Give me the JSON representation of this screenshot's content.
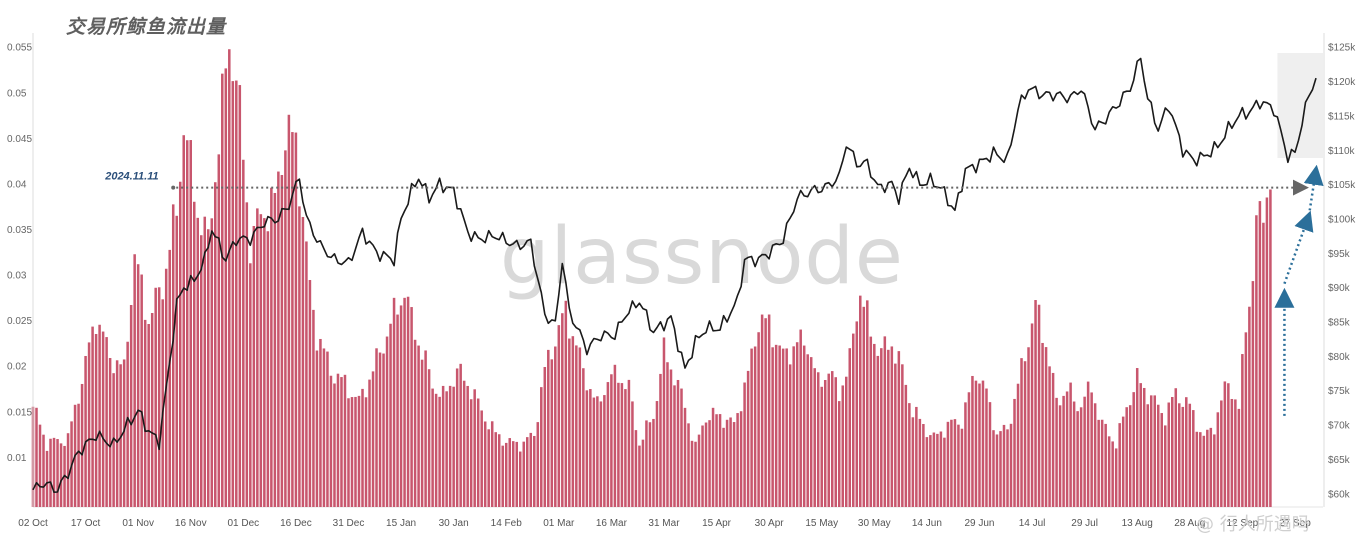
{
  "title": "交易所鲸鱼流出量",
  "watermark": "glassnode",
  "credit": "@ 行人所遇吗",
  "chart_data": {
    "type": "bar+line",
    "title": "交易所鲸鱼流出量",
    "left_axis": {
      "ticks": [
        "0.01",
        "0.015",
        "0.02",
        "0.025",
        "0.03",
        "0.035",
        "0.04",
        "0.045",
        "0.05",
        "0.055"
      ],
      "ylim": [
        0.0045,
        0.0565
      ]
    },
    "right_axis": {
      "ticks": [
        "$60k",
        "$65k",
        "$70k",
        "$75k",
        "$80k",
        "$85k",
        "$90k",
        "$95k",
        "$100k",
        "$105k",
        "$110k",
        "$115k",
        "$120k",
        "$125k"
      ],
      "ylim": [
        58000,
        127000
      ]
    },
    "x_axis": {
      "start": "2024-10-02",
      "end": "2025-09-20",
      "ticks": [
        "02 Oct",
        "17 Oct",
        "01 Nov",
        "16 Nov",
        "01 Dec",
        "16 Dec",
        "31 Dec",
        "15 Jan",
        "30 Jan",
        "14 Feb",
        "01 Mar",
        "16 Mar",
        "31 Mar",
        "15 Apr",
        "30 Apr",
        "15 May",
        "30 May",
        "14 Jun",
        "29 Jun",
        "14 Jul",
        "29 Jul",
        "13 Aug",
        "28 Aug",
        "12 Sep",
        "27 Sep"
      ]
    },
    "series": [
      {
        "kind": "bar",
        "axis": "left",
        "color": "#c8566d",
        "points": [
          [
            "2024-10-02",
            0.0155
          ],
          [
            "2024-10-06",
            0.0115
          ],
          [
            "2024-10-12",
            0.012
          ],
          [
            "2024-10-16",
            0.0185
          ],
          [
            "2024-10-20",
            0.0255
          ],
          [
            "2024-10-24",
            0.021
          ],
          [
            "2024-10-28",
            0.0195
          ],
          [
            "2024-10-31",
            0.032
          ],
          [
            "2024-11-04",
            0.025
          ],
          [
            "2024-11-08",
            0.029
          ],
          [
            "2024-11-12",
            0.037
          ],
          [
            "2024-11-14",
            0.0465
          ],
          [
            "2024-11-18",
            0.037
          ],
          [
            "2024-11-21",
            0.0335
          ],
          [
            "2024-11-24",
            0.045
          ],
          [
            "2024-11-27",
            0.0555
          ],
          [
            "2024-11-29",
            0.052
          ],
          [
            "2024-12-03",
            0.0335
          ],
          [
            "2024-12-06",
            0.0365
          ],
          [
            "2024-12-10",
            0.038
          ],
          [
            "2024-12-13",
            0.0455
          ],
          [
            "2024-12-16",
            0.0445
          ],
          [
            "2024-12-20",
            0.0285
          ],
          [
            "2024-12-22",
            0.0235
          ],
          [
            "2024-12-26",
            0.0195
          ],
          [
            "2024-12-30",
            0.018
          ],
          [
            "2025-01-03",
            0.016
          ],
          [
            "2025-01-07",
            0.0195
          ],
          [
            "2025-01-11",
            0.0235
          ],
          [
            "2025-01-14",
            0.0265
          ],
          [
            "2025-01-16",
            0.0283
          ],
          [
            "2025-01-18",
            0.025
          ],
          [
            "2025-01-21",
            0.0215
          ],
          [
            "2025-01-24",
            0.018
          ],
          [
            "2025-01-27",
            0.0165
          ],
          [
            "2025-01-31",
            0.0195
          ],
          [
            "2025-02-04",
            0.0175
          ],
          [
            "2025-02-07",
            0.015
          ],
          [
            "2025-02-11",
            0.0125
          ],
          [
            "2025-02-15",
            0.0115
          ],
          [
            "2025-02-19",
            0.0115
          ],
          [
            "2025-02-22",
            0.0125
          ],
          [
            "2025-02-25",
            0.0195
          ],
          [
            "2025-02-28",
            0.023
          ],
          [
            "2025-03-03",
            0.026
          ],
          [
            "2025-03-05",
            0.0235
          ],
          [
            "2025-03-08",
            0.0195
          ],
          [
            "2025-03-12",
            0.0155
          ],
          [
            "2025-03-15",
            0.0185
          ],
          [
            "2025-03-18",
            0.019
          ],
          [
            "2025-03-21",
            0.0175
          ],
          [
            "2025-03-24",
            0.0115
          ],
          [
            "2025-03-28",
            0.0145
          ],
          [
            "2025-03-31",
            0.0215
          ],
          [
            "2025-04-03",
            0.019
          ],
          [
            "2025-04-06",
            0.0155
          ],
          [
            "2025-04-09",
            0.011
          ],
          [
            "2025-04-12",
            0.0145
          ],
          [
            "2025-04-16",
            0.0145
          ],
          [
            "2025-04-20",
            0.0135
          ],
          [
            "2025-04-24",
            0.019
          ],
          [
            "2025-04-27",
            0.025
          ],
          [
            "2025-04-30",
            0.0245
          ],
          [
            "2025-05-04",
            0.021
          ],
          [
            "2025-05-08",
            0.0225
          ],
          [
            "2025-05-11",
            0.0225
          ],
          [
            "2025-05-14",
            0.018
          ],
          [
            "2025-05-17",
            0.0195
          ],
          [
            "2025-05-20",
            0.017
          ],
          [
            "2025-05-23",
            0.0205
          ],
          [
            "2025-05-26",
            0.0285
          ],
          [
            "2025-05-29",
            0.0235
          ],
          [
            "2025-06-01",
            0.0215
          ],
          [
            "2025-06-04",
            0.0225
          ],
          [
            "2025-06-07",
            0.0195
          ],
          [
            "2025-06-10",
            0.015
          ],
          [
            "2025-06-13",
            0.0135
          ],
          [
            "2025-06-16",
            0.012
          ],
          [
            "2025-06-20",
            0.0135
          ],
          [
            "2025-06-24",
            0.014
          ],
          [
            "2025-06-28",
            0.0195
          ],
          [
            "2025-07-01",
            0.017
          ],
          [
            "2025-07-04",
            0.0125
          ],
          [
            "2025-07-07",
            0.013
          ],
          [
            "2025-07-11",
            0.0195
          ],
          [
            "2025-07-15",
            0.0265
          ],
          [
            "2025-07-18",
            0.0225
          ],
          [
            "2025-07-21",
            0.016
          ],
          [
            "2025-07-24",
            0.0175
          ],
          [
            "2025-07-27",
            0.0155
          ],
          [
            "2025-07-31",
            0.0175
          ],
          [
            "2025-08-03",
            0.0135
          ],
          [
            "2025-08-07",
            0.0115
          ],
          [
            "2025-08-10",
            0.0155
          ],
          [
            "2025-08-13",
            0.0185
          ],
          [
            "2025-08-17",
            0.0165
          ],
          [
            "2025-08-21",
            0.0145
          ],
          [
            "2025-08-24",
            0.017
          ],
          [
            "2025-08-28",
            0.0155
          ],
          [
            "2025-09-01",
            0.012
          ],
          [
            "2025-09-04",
            0.0135
          ],
          [
            "2025-09-08",
            0.0185
          ],
          [
            "2025-09-11",
            0.015
          ],
          [
            "2025-09-13",
            0.025
          ],
          [
            "2025-09-15",
            0.0295
          ],
          [
            "2025-09-16",
            0.035
          ],
          [
            "2025-09-18",
            0.038
          ],
          [
            "2025-09-20",
            0.04
          ]
        ]
      },
      {
        "kind": "line",
        "axis": "right",
        "color": "#1a1a1a",
        "points": [
          [
            "2024-10-02",
            60500
          ],
          [
            "2024-10-05",
            61500
          ],
          [
            "2024-10-09",
            60500
          ],
          [
            "2024-10-12",
            63000
          ],
          [
            "2024-10-15",
            66000
          ],
          [
            "2024-10-20",
            68500
          ],
          [
            "2024-10-25",
            67000
          ],
          [
            "2024-10-29",
            70000
          ],
          [
            "2024-11-01",
            72000
          ],
          [
            "2024-11-04",
            69000
          ],
          [
            "2024-11-07",
            67500
          ],
          [
            "2024-11-10",
            79000
          ],
          [
            "2024-11-12",
            87500
          ],
          [
            "2024-11-14",
            90000
          ],
          [
            "2024-11-17",
            91000
          ],
          [
            "2024-11-20",
            94000
          ],
          [
            "2024-11-22",
            98500
          ],
          [
            "2024-11-26",
            94000
          ],
          [
            "2024-11-29",
            97000
          ],
          [
            "2024-12-03",
            97000
          ],
          [
            "2024-12-07",
            99500
          ],
          [
            "2024-12-11",
            100000
          ],
          [
            "2024-12-14",
            102000
          ],
          [
            "2024-12-17",
            106000
          ],
          [
            "2024-12-19",
            100000
          ],
          [
            "2024-12-23",
            96000
          ],
          [
            "2024-12-27",
            94000
          ],
          [
            "2024-12-31",
            93500
          ],
          [
            "2025-01-04",
            98000
          ],
          [
            "2025-01-08",
            95000
          ],
          [
            "2025-01-13",
            94000
          ],
          [
            "2025-01-15",
            100000
          ],
          [
            "2025-01-18",
            104000
          ],
          [
            "2025-01-20",
            106000
          ],
          [
            "2025-01-23",
            103000
          ],
          [
            "2025-01-26",
            105000
          ],
          [
            "2025-01-30",
            104000
          ],
          [
            "2025-02-03",
            98000
          ],
          [
            "2025-02-06",
            97000
          ],
          [
            "2025-02-11",
            97500
          ],
          [
            "2025-02-17",
            96000
          ],
          [
            "2025-02-21",
            96500
          ],
          [
            "2025-02-25",
            86000
          ],
          [
            "2025-02-28",
            84500
          ],
          [
            "2025-03-02",
            94000
          ],
          [
            "2025-03-04",
            86500
          ],
          [
            "2025-03-09",
            81000
          ],
          [
            "2025-03-13",
            83000
          ],
          [
            "2025-03-17",
            83000
          ],
          [
            "2025-03-20",
            86000
          ],
          [
            "2025-03-24",
            88000
          ],
          [
            "2025-03-28",
            83500
          ],
          [
            "2025-04-02",
            85500
          ],
          [
            "2025-04-06",
            78000
          ],
          [
            "2025-04-09",
            82000
          ],
          [
            "2025-04-12",
            84000
          ],
          [
            "2025-04-16",
            84000
          ],
          [
            "2025-04-21",
            88000
          ],
          [
            "2025-04-23",
            94000
          ],
          [
            "2025-04-27",
            94000
          ],
          [
            "2025-04-30",
            95000
          ],
          [
            "2025-05-04",
            97000
          ],
          [
            "2025-05-08",
            103000
          ],
          [
            "2025-05-12",
            104000
          ],
          [
            "2025-05-16",
            104500
          ],
          [
            "2025-05-20",
            106000
          ],
          [
            "2025-05-22",
            111000
          ],
          [
            "2025-05-25",
            108000
          ],
          [
            "2025-05-28",
            108000
          ],
          [
            "2025-05-31",
            104500
          ],
          [
            "2025-06-04",
            105000
          ],
          [
            "2025-06-06",
            103000
          ],
          [
            "2025-06-09",
            107500
          ],
          [
            "2025-06-12",
            105000
          ],
          [
            "2025-06-15",
            105500
          ],
          [
            "2025-06-18",
            104500
          ],
          [
            "2025-06-22",
            101000
          ],
          [
            "2025-06-25",
            107000
          ],
          [
            "2025-06-29",
            108000
          ],
          [
            "2025-07-03",
            109500
          ],
          [
            "2025-07-07",
            108500
          ],
          [
            "2025-07-10",
            116000
          ],
          [
            "2025-07-13",
            119000
          ],
          [
            "2025-07-17",
            118000
          ],
          [
            "2025-07-21",
            118000
          ],
          [
            "2025-07-25",
            117500
          ],
          [
            "2025-07-28",
            119000
          ],
          [
            "2025-08-01",
            113000
          ],
          [
            "2025-08-04",
            114500
          ],
          [
            "2025-08-08",
            117000
          ],
          [
            "2025-08-11",
            119000
          ],
          [
            "2025-08-14",
            123500
          ],
          [
            "2025-08-16",
            117500
          ],
          [
            "2025-08-19",
            113000
          ],
          [
            "2025-08-22",
            116500
          ],
          [
            "2025-08-26",
            110000
          ],
          [
            "2025-08-29",
            108500
          ],
          [
            "2025-09-01",
            109000
          ],
          [
            "2025-09-05",
            110500
          ],
          [
            "2025-09-08",
            113000
          ],
          [
            "2025-09-11",
            115000
          ],
          [
            "2025-09-14",
            115500
          ],
          [
            "2025-09-17",
            117000
          ],
          [
            "2025-09-21",
            116000
          ],
          [
            "2025-09-23",
            112500
          ],
          [
            "2025-09-25",
            109000
          ],
          [
            "2025-09-27",
            109500
          ],
          [
            "2025-09-29",
            114000
          ],
          [
            "2025-10-01",
            118000
          ],
          [
            "2025-10-03",
            120500
          ]
        ]
      }
    ],
    "annotations": [
      {
        "kind": "label",
        "text": "2024.11.11",
        "date": "2024-11-11"
      },
      {
        "kind": "dotted-hline",
        "value": 104500,
        "axis": "right",
        "from": "2024-11-11",
        "to": "2025-10-01",
        "color": "#666666"
      },
      {
        "kind": "dotted-arrow",
        "color": "#2b6f9a",
        "from": [
          "2025-09-24",
          0.0145
        ],
        "to": [
          "2025-09-24",
          0.028
        ]
      },
      {
        "kind": "dotted-arrow",
        "color": "#2b6f9a",
        "from": [
          "2025-09-24",
          0.029
        ],
        "to": [
          "2025-10-01",
          0.0365
        ]
      },
      {
        "kind": "dotted-arrow",
        "color": "#2b6f9a",
        "from": [
          "2025-10-01",
          0.0365
        ],
        "to": [
          "2025-10-03",
          0.0415
        ]
      }
    ]
  }
}
